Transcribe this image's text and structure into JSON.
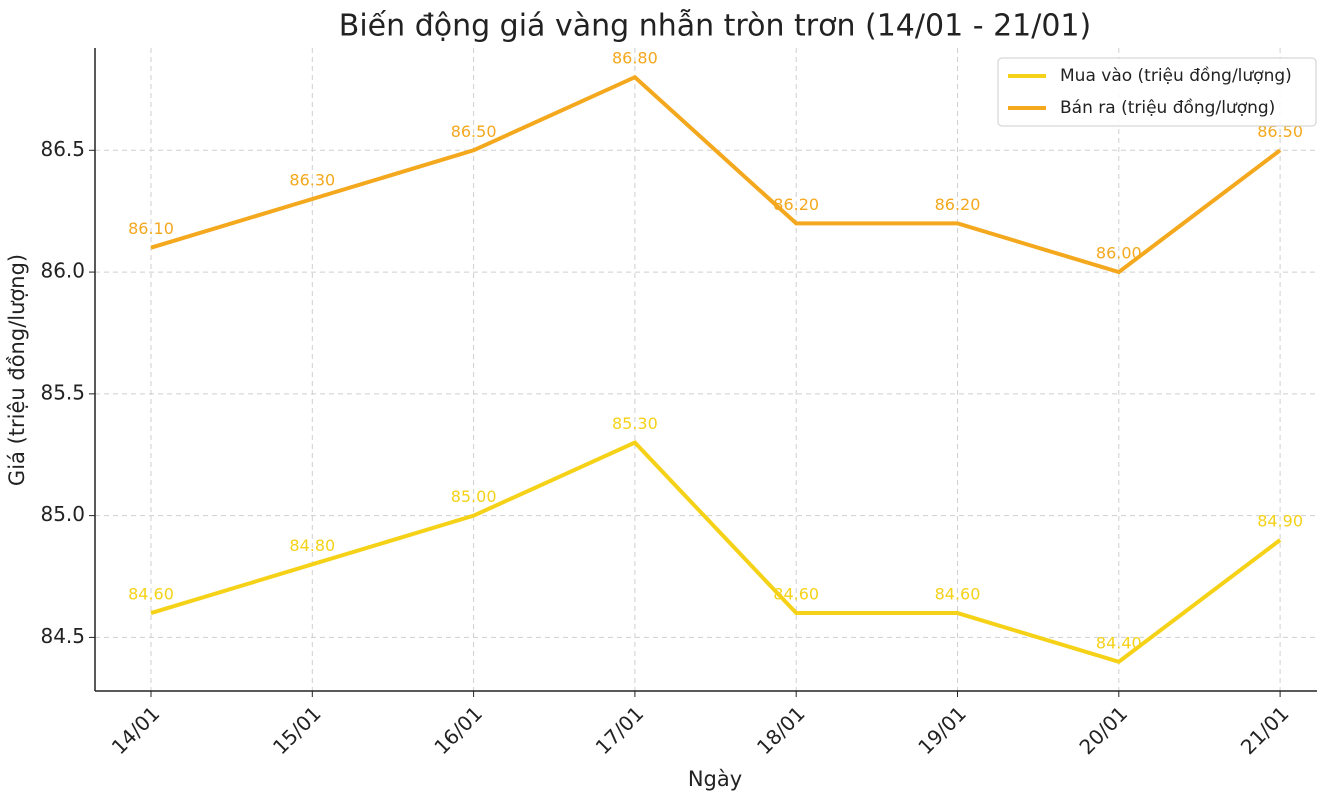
{
  "chart_data": {
    "type": "line",
    "title": "Biến động giá vàng nhẫn tròn trơn (14/01 - 21/01)",
    "x_label": "Ngày",
    "y_label": "Giá (triệu đồng/lượng)",
    "categories": [
      "14/01",
      "15/01",
      "16/01",
      "17/01",
      "18/01",
      "19/01",
      "20/01",
      "21/01"
    ],
    "series": [
      {
        "name": "Mua vào (triệu đồng/lượng)",
        "color": "#f5d218",
        "values": [
          84.6,
          84.8,
          85.0,
          85.3,
          84.6,
          84.6,
          84.4,
          84.9
        ],
        "value_labels": [
          "84.60",
          "84.80",
          "85.00",
          "85.30",
          "84.60",
          "84.60",
          "84.40",
          "84.90"
        ]
      },
      {
        "name": "Bán ra (triệu đồng/lượng)",
        "color": "#f4a81d",
        "values": [
          86.1,
          86.3,
          86.5,
          86.8,
          86.2,
          86.2,
          86.0,
          86.5
        ],
        "value_labels": [
          "86.10",
          "86.30",
          "86.50",
          "86.80",
          "86.20",
          "86.20",
          "86.00",
          "86.50"
        ]
      }
    ],
    "ylim": [
      84.28,
      86.92
    ],
    "yticks": [
      84.5,
      {
        "value": 85,
        "label": "85.0"
      },
      85.5,
      {
        "value": 86,
        "label": "86.0"
      },
      86.5
    ],
    "grid": true,
    "legend": "upper right"
  }
}
